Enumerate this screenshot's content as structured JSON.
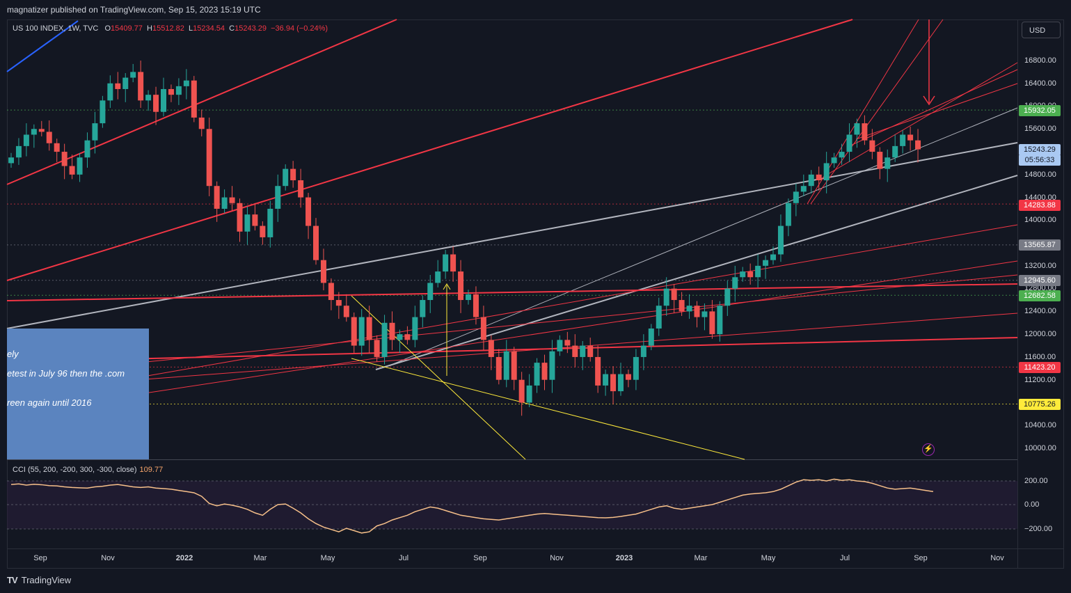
{
  "header": {
    "published": "magnatizer published on TradingView.com, Sep 15, 2023 15:19 UTC"
  },
  "legend": {
    "symbol": "US 100 INDEX, 1W, TVC",
    "open_label": "O",
    "open": "15409.77",
    "high_label": "H",
    "high": "15512.82",
    "low_label": "L",
    "low": "15234.54",
    "close_label": "C",
    "close": "15243.29",
    "change": "−36.94 (−0.24%)"
  },
  "currency_button": "USD",
  "price_axis": {
    "ticks": [
      "16800.00",
      "16400.00",
      "16000.00",
      "15600.00",
      "14800.00",
      "14400.00",
      "14000.00",
      "13200.00",
      "12800.00",
      "12400.00",
      "12000.00",
      "11600.00",
      "11200.00",
      "10400.00",
      "10000.00"
    ]
  },
  "price_badges": [
    {
      "text": "15932.05",
      "bg": "#4caf50",
      "fg": "#ffffff"
    },
    {
      "text": "15243.29",
      "bg": "#aac9f2",
      "fg": "#131722"
    },
    {
      "text": "05:56:33",
      "bg": "#aac9f2",
      "fg": "#131722"
    },
    {
      "text": "14283.88",
      "bg": "#f23645",
      "fg": "#ffffff"
    },
    {
      "text": "13565.87",
      "bg": "#787b86",
      "fg": "#ffffff"
    },
    {
      "text": "12945.60",
      "bg": "#787b86",
      "fg": "#ffffff"
    },
    {
      "text": "12682.58",
      "bg": "#4caf50",
      "fg": "#ffffff"
    },
    {
      "text": "11423.20",
      "bg": "#f23645",
      "fg": "#ffffff"
    },
    {
      "text": "10775.26",
      "bg": "#ffeb3b",
      "fg": "#131722"
    }
  ],
  "cci": {
    "title": "CCI (55, 200, -200, 300, -300, close)",
    "value": "109.77",
    "ticks": [
      "200.00",
      "0.00",
      "−200.00"
    ]
  },
  "time_axis": [
    "Sep",
    "Nov",
    "2022",
    "Mar",
    "May",
    "Jul",
    "Sep",
    "Nov",
    "2023",
    "Mar",
    "May",
    "Jul",
    "Sep",
    "Nov"
  ],
  "note": {
    "lines": [
      "ely",
      "etest in July 96 then the .com",
      "reen again until 2016",
      "..."
    ]
  },
  "footer": {
    "brand": "TradingView",
    "logo": "TV"
  },
  "colors": {
    "up": "#26a69a",
    "down": "#ef5350",
    "background": "#131722",
    "trend_red": "#f23645",
    "trend_grey": "#b2b5be",
    "trend_yellow": "#ffeb3b",
    "cci_line": "#f7c08a"
  },
  "icons": {
    "bolt": "lightning-icon"
  },
  "chart_data": {
    "type": "candlestick",
    "title": "US 100 INDEX, 1W, TVC",
    "ylim": [
      10000,
      17000
    ],
    "x_range": [
      "2021-08",
      "2023-11"
    ],
    "candles_summary": "weekly OHLC, NASDAQ 100",
    "last": {
      "open": 15409.77,
      "high": 15512.82,
      "low": 15234.54,
      "close": 15243.29
    },
    "levels": [
      15932.05,
      14283.88,
      13565.87,
      12945.6,
      12682.58,
      11423.2,
      10775.26
    ],
    "cci": {
      "params": [
        55,
        200,
        -200,
        300,
        -300
      ],
      "value": 109.77,
      "ylim": [
        -300,
        300
      ]
    }
  }
}
